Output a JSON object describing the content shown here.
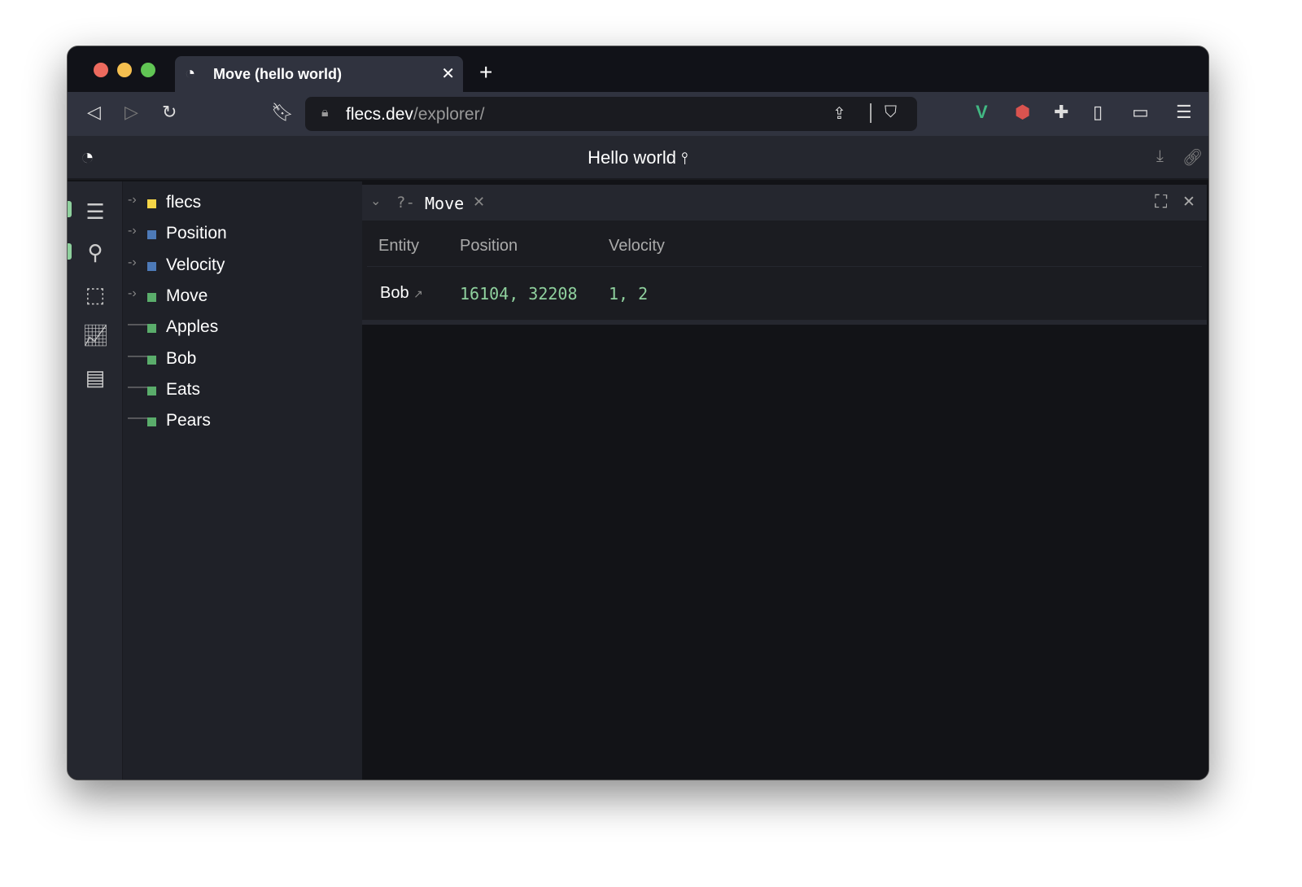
{
  "browser": {
    "tab_title": "Move (hello world)",
    "url_host": "flecs.dev",
    "url_path": "/explorer/"
  },
  "app": {
    "title": "Hello world"
  },
  "tree": {
    "items": [
      {
        "label": "flecs",
        "color": "#f5d547",
        "expandable": true
      },
      {
        "label": "Position",
        "color": "#4d7ab8",
        "expandable": true
      },
      {
        "label": "Velocity",
        "color": "#4d7ab8",
        "expandable": true
      },
      {
        "label": "Move",
        "color": "#5aad6b",
        "expandable": true
      },
      {
        "label": "Apples",
        "color": "#5aad6b",
        "expandable": false
      },
      {
        "label": "Bob",
        "color": "#5aad6b",
        "expandable": false
      },
      {
        "label": "Eats",
        "color": "#5aad6b",
        "expandable": false
      },
      {
        "label": "Pears",
        "color": "#5aad6b",
        "expandable": false
      }
    ]
  },
  "query": {
    "prefix": "?-",
    "name": "Move",
    "columns": [
      "Entity",
      "Position",
      "Velocity"
    ],
    "rows": [
      {
        "entity": "Bob",
        "position": "16104, 32208",
        "velocity": "1, 2"
      }
    ]
  }
}
